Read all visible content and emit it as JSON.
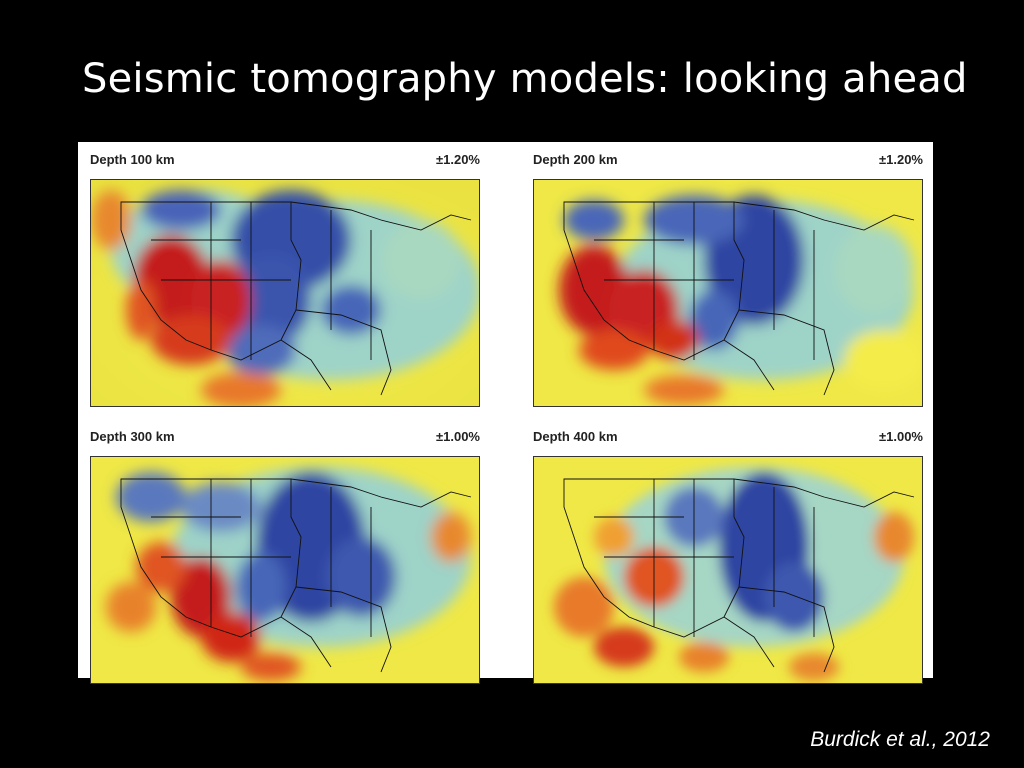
{
  "slide": {
    "title": "Seismic tomography models: looking ahead",
    "citation": "Burdick et al., 2012"
  },
  "colors": {
    "background": "#000000",
    "slow_anomaly": "#c0121a",
    "fast_anomaly": "#2a3f9f",
    "neutral": "#f2e84a",
    "transition": "#8ccfd8"
  },
  "panels": [
    {
      "depth_label": "Depth 100 km",
      "scale_label": "±1.20%"
    },
    {
      "depth_label": "Depth 200 km",
      "scale_label": "±1.20%"
    },
    {
      "depth_label": "Depth 300 km",
      "scale_label": "±1.00%"
    },
    {
      "depth_label": "Depth 400 km",
      "scale_label": "±1.00%"
    }
  ]
}
